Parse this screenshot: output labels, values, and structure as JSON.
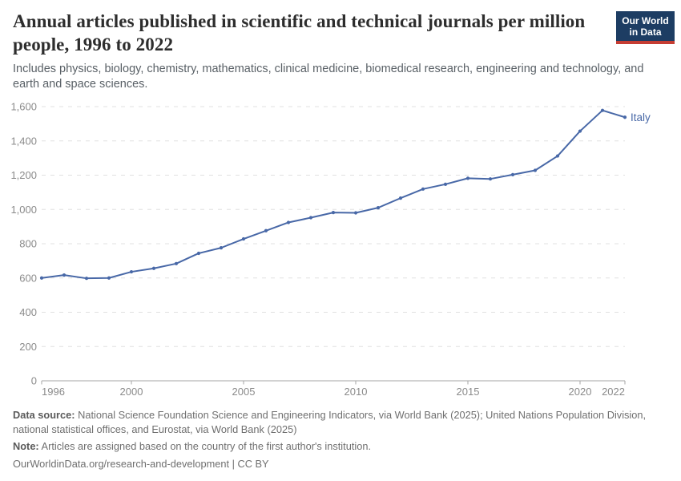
{
  "header": {
    "title": "Annual articles published in scientific and technical journals per million people, 1996 to 2022",
    "subtitle": "Includes physics, biology, chemistry, mathematics, clinical medicine, biomedical research, engineering and technology, and earth and space sciences.",
    "logo": {
      "line1": "Our World",
      "line2": "in Data",
      "bg_color": "#1d3d63",
      "accent_color": "#c53d33"
    }
  },
  "chart_data": {
    "type": "line",
    "title": "Annual articles published in scientific and technical journals per million people, 1996 to 2022",
    "entity": "Italy",
    "xlim": [
      1996,
      2022
    ],
    "ylim": [
      0,
      1600
    ],
    "x_ticks": [
      1996,
      2000,
      2005,
      2010,
      2015,
      2020,
      2022
    ],
    "y_ticks": [
      0,
      200,
      400,
      600,
      800,
      1000,
      1200,
      1400,
      1600
    ],
    "grid": "horizontal-dashed",
    "legend_position": "end-of-line-label",
    "series": [
      {
        "name": "Italy",
        "color": "#4868a7",
        "x": [
          1996,
          1997,
          1998,
          1999,
          2000,
          2001,
          2002,
          2003,
          2004,
          2005,
          2006,
          2007,
          2008,
          2009,
          2010,
          2011,
          2012,
          2013,
          2014,
          2015,
          2016,
          2017,
          2018,
          2019,
          2020,
          2021,
          2022
        ],
        "values": [
          600,
          617,
          598,
          600,
          636,
          656,
          684,
          744,
          776,
          828,
          876,
          924,
          952,
          982,
          980,
          1010,
          1066,
          1119,
          1147,
          1182,
          1178,
          1203,
          1228,
          1312,
          1457,
          1578,
          1538
        ]
      }
    ],
    "colors": {
      "line": "#4868a7",
      "gridline": "#e0e0e0",
      "axis_line": "#a6a6a6",
      "tick_label": "#8b8b8b"
    }
  },
  "footer": {
    "data_source_label": "Data source:",
    "data_source_text": " National Science Foundation Science and Engineering Indicators, via World Bank (2025); United Nations Population Division, national statistical offices, and Eurostat, via World Bank (2025)",
    "note_label": "Note:",
    "note_text": " Articles are assigned based on the country of the first author's institution.",
    "license_line": "OurWorldinData.org/research-and-development | CC BY"
  }
}
